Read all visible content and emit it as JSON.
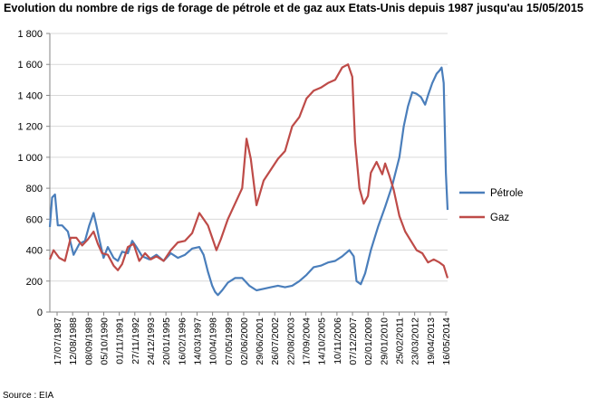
{
  "page": {
    "title": "Evolution du nombre de rigs de forage de pétrole et de gaz aux Etats-Unis depuis 1987 jusqu'au 15/05/2015",
    "source": "Source : EIA"
  },
  "colors": {
    "petrole": "#4a7ebb",
    "gaz": "#be4b48",
    "axis": "#868686"
  },
  "chart_data": {
    "type": "line",
    "title": "Evolution du nombre de rigs de forage de pétrole et de gaz aux Etats-Unis depuis 1987 jusqu'au 15/05/2015",
    "xlabel": "",
    "ylabel": "",
    "ylim": [
      0,
      1800
    ],
    "y_ticks": [
      "0",
      "200",
      "400",
      "600",
      "800",
      "1 000",
      "1 200",
      "1 400",
      "1 600",
      "1 800"
    ],
    "x_tick_labels": [
      "17/07/1987",
      "12/08/1988",
      "08/09/1989",
      "05/10/1990",
      "01/11/1991",
      "27/11/1992",
      "24/12/1993",
      "20/01/1995",
      "16/02/1996",
      "14/03/1997",
      "10/04/1998",
      "07/05/1999",
      "02/06/2000",
      "29/06/2001",
      "26/07/2002",
      "22/08/2003",
      "17/09/2004",
      "14/10/2005",
      "10/11/2006",
      "07/12/2007",
      "02/01/2009",
      "29/01/2010",
      "25/02/2011",
      "23/03/2012",
      "19/04/2013",
      "16/05/2014"
    ],
    "grid": "horizontal",
    "legend": "right",
    "series": [
      {
        "name": "Pétrole",
        "x": [
          1987.54,
          1987.7,
          1987.9,
          1988.1,
          1988.4,
          1988.8,
          1989.2,
          1989.6,
          1990.0,
          1990.3,
          1990.6,
          1990.8,
          1991.0,
          1991.3,
          1991.6,
          1992.0,
          1992.3,
          1992.6,
          1993.0,
          1993.3,
          1993.6,
          1994.0,
          1994.5,
          1995.0,
          1995.5,
          1996.0,
          1996.5,
          1997.0,
          1997.5,
          1998.0,
          1998.3,
          1998.6,
          1998.9,
          1999.1,
          1999.3,
          1999.6,
          2000.0,
          2000.5,
          2001.0,
          2001.5,
          2002.0,
          2002.5,
          2003.0,
          2003.5,
          2004.0,
          2004.5,
          2005.0,
          2005.5,
          2006.0,
          2006.5,
          2007.0,
          2007.5,
          2008.0,
          2008.5,
          2008.8,
          2009.0,
          2009.3,
          2009.6,
          2010.0,
          2010.5,
          2011.0,
          2011.5,
          2012.0,
          2012.3,
          2012.6,
          2012.9,
          2013.2,
          2013.5,
          2013.8,
          2014.0,
          2014.3,
          2014.6,
          2014.8,
          2014.95,
          2015.1,
          2015.25,
          2015.37
        ],
        "values": [
          550,
          740,
          760,
          560,
          560,
          520,
          370,
          440,
          460,
          560,
          640,
          560,
          470,
          350,
          420,
          350,
          330,
          390,
          380,
          460,
          420,
          360,
          340,
          370,
          330,
          380,
          350,
          370,
          410,
          420,
          370,
          260,
          170,
          130,
          110,
          140,
          190,
          220,
          220,
          170,
          140,
          150,
          160,
          170,
          160,
          170,
          200,
          240,
          290,
          300,
          320,
          330,
          360,
          400,
          360,
          200,
          180,
          250,
          400,
          550,
          680,
          820,
          1000,
          1200,
          1330,
          1420,
          1410,
          1390,
          1340,
          1400,
          1480,
          1540,
          1560,
          1580,
          1480,
          900,
          660
        ]
      },
      {
        "name": "Gaz",
        "x": [
          1987.54,
          1987.8,
          1988.2,
          1988.6,
          1989.0,
          1989.4,
          1989.8,
          1990.2,
          1990.6,
          1990.9,
          1991.2,
          1991.6,
          1992.0,
          1992.3,
          1992.6,
          1993.0,
          1993.4,
          1993.8,
          1994.2,
          1994.6,
          1995.0,
          1995.5,
          1996.0,
          1996.5,
          1997.0,
          1997.5,
          1998.0,
          1998.3,
          1998.6,
          1998.9,
          1999.2,
          1999.5,
          2000.0,
          2000.5,
          2001.0,
          2001.3,
          2001.6,
          2002.0,
          2002.5,
          2003.0,
          2003.5,
          2004.0,
          2004.5,
          2005.0,
          2005.5,
          2006.0,
          2006.5,
          2007.0,
          2007.5,
          2008.0,
          2008.4,
          2008.7,
          2008.9,
          2009.2,
          2009.5,
          2009.8,
          2010.0,
          2010.4,
          2010.8,
          2011.0,
          2011.3,
          2011.6,
          2012.0,
          2012.4,
          2012.8,
          2013.2,
          2013.6,
          2014.0,
          2014.4,
          2014.8,
          2015.1,
          2015.37
        ],
        "values": [
          340,
          400,
          350,
          330,
          480,
          480,
          430,
          470,
          520,
          440,
          380,
          370,
          300,
          270,
          310,
          420,
          440,
          330,
          380,
          340,
          360,
          330,
          400,
          450,
          460,
          510,
          640,
          600,
          560,
          480,
          400,
          470,
          600,
          700,
          800,
          1120,
          990,
          690,
          850,
          920,
          990,
          1040,
          1200,
          1260,
          1380,
          1430,
          1450,
          1480,
          1500,
          1580,
          1600,
          1520,
          1100,
          800,
          700,
          750,
          900,
          970,
          890,
          960,
          880,
          790,
          620,
          520,
          460,
          400,
          380,
          320,
          340,
          320,
          300,
          220
        ]
      }
    ]
  }
}
